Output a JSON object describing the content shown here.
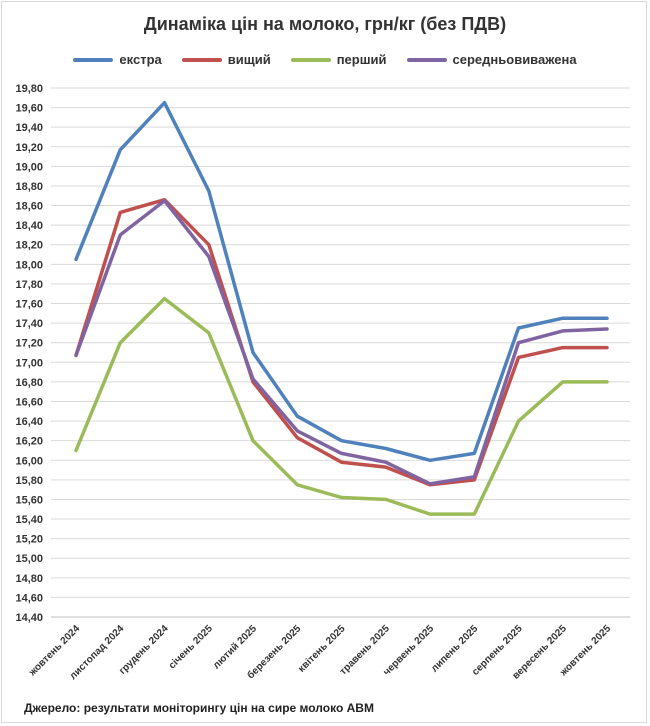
{
  "chart_data": {
    "type": "line",
    "title": "Динаміка цін на молоко, грн/кг (без ПДВ)",
    "xlabel": "",
    "ylabel": "",
    "categories": [
      "жовтень 2024",
      "листопад 2024",
      "грудень 2024",
      "січень 2025",
      "лютий 2025",
      "березень 2025",
      "квітень 2025",
      "травень 2025",
      "червень 2025",
      "липень 2025",
      "серпень 2025",
      "вересень 2025",
      "жовтень 2025"
    ],
    "ylim": [
      14.4,
      19.8
    ],
    "ytick_step": 0.2,
    "ytick_labels": [
      "14,40",
      "14,60",
      "14,80",
      "15,00",
      "15,20",
      "15,40",
      "15,60",
      "15,80",
      "16,00",
      "16,20",
      "16,40",
      "16,60",
      "16,80",
      "17,00",
      "17,20",
      "17,40",
      "17,60",
      "17,80",
      "18,00",
      "18,20",
      "18,40",
      "18,60",
      "18,80",
      "19,00",
      "19,20",
      "19,40",
      "19,60",
      "19,80"
    ],
    "grid": true,
    "legend_position": "top",
    "series": [
      {
        "name": "екстра",
        "color": "#4f81bd",
        "values": [
          18.05,
          19.17,
          19.65,
          18.75,
          17.1,
          16.45,
          16.2,
          16.12,
          16.0,
          16.07,
          17.35,
          17.45,
          17.45
        ]
      },
      {
        "name": "вищий",
        "color": "#c0504d",
        "values": [
          17.07,
          18.53,
          18.66,
          18.2,
          16.8,
          16.23,
          15.98,
          15.93,
          15.75,
          15.8,
          17.05,
          17.15,
          17.15
        ]
      },
      {
        "name": "перший",
        "color": "#9bbb59",
        "values": [
          16.1,
          17.2,
          17.65,
          17.3,
          16.2,
          15.75,
          15.62,
          15.6,
          15.45,
          15.45,
          16.4,
          16.8,
          16.8
        ]
      },
      {
        "name": "середньовиважена",
        "color": "#8064a2",
        "values": [
          17.07,
          18.3,
          18.65,
          18.08,
          16.83,
          16.3,
          16.07,
          15.98,
          15.76,
          15.83,
          17.2,
          17.32,
          17.34
        ]
      }
    ]
  },
  "source_note": "Джерело: результати моніторингу цін на сире молоко АВМ"
}
